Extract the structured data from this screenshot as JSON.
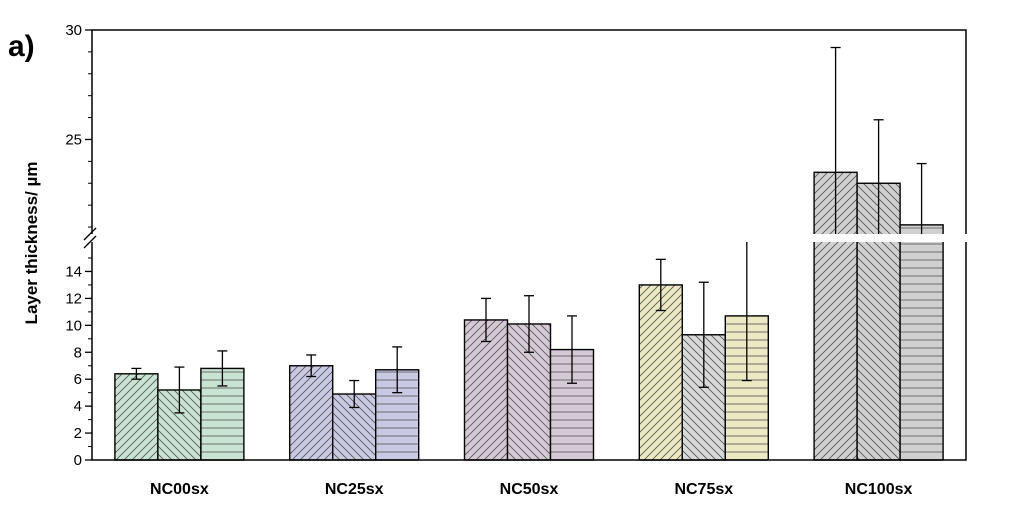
{
  "chart_data": {
    "type": "bar",
    "panel_label": "a)",
    "ylabel": "Layer thickness/ µm",
    "categories": [
      "NC00sx",
      "NC25sx",
      "NC50sx",
      "NC75sx",
      "NC100sx"
    ],
    "y_axis": {
      "broken": true,
      "lower_range": [
        0,
        15
      ],
      "upper_range": [
        20.5,
        30
      ],
      "lower_ticks": [
        0,
        2,
        4,
        6,
        8,
        10,
        12,
        14
      ],
      "upper_ticks": [
        25,
        30
      ]
    },
    "series": [
      {
        "values": [
          6.4,
          7.0,
          10.4,
          13.0,
          23.5
        ],
        "errors": [
          0.4,
          0.8,
          1.6,
          1.9,
          5.7
        ]
      },
      {
        "values": [
          5.2,
          4.9,
          10.1,
          9.3,
          23.0
        ],
        "errors": [
          1.7,
          1.0,
          2.1,
          3.9,
          2.9
        ]
      },
      {
        "values": [
          6.8,
          6.7,
          8.2,
          10.7,
          21.1
        ],
        "errors": [
          1.3,
          1.7,
          2.5,
          4.8,
          2.8
        ]
      }
    ],
    "bar_colors": [
      [
        "#c9e3d3",
        "#c9c9e3",
        "#d6c9d6",
        "#ece8c2",
        "#d0d0d0"
      ],
      [
        "#c9e3d3",
        "#c9c9e3",
        "#d6c9d6",
        "#d8d8d8",
        "#d0d0d0"
      ],
      [
        "#c9e3d3",
        "#c9c9e3",
        "#d6c9d6",
        "#ece8c2",
        "#d0d0d0"
      ]
    ],
    "patterns": [
      "diagonal-up",
      "diagonal-down",
      "horizontal"
    ],
    "grid": false,
    "legend": "none"
  }
}
